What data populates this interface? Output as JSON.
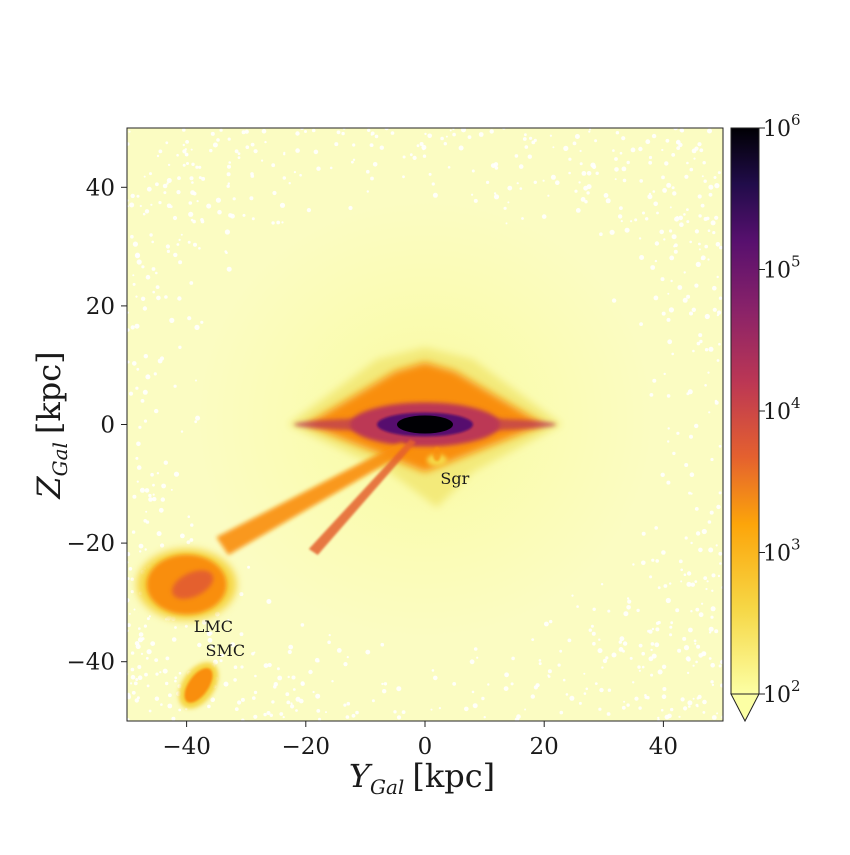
{
  "chart_data": {
    "type": "heatmap",
    "title": "",
    "xlabel": {
      "main": "Y",
      "sub": "Gal",
      "unit": "[kpc]"
    },
    "ylabel": {
      "main": "Z",
      "sub": "Gal",
      "unit": "[kpc]"
    },
    "xlim": [
      -50,
      50
    ],
    "ylim": [
      -50,
      50
    ],
    "xticks": [
      -40,
      -20,
      0,
      20,
      40
    ],
    "yticks": [
      -40,
      -20,
      0,
      20,
      40
    ],
    "xtick_labels": [
      "−40",
      "−20",
      "0",
      "20",
      "40"
    ],
    "ytick_labels": [
      "−40",
      "−20",
      "0",
      "20",
      "40"
    ],
    "grid": false,
    "colormap": "inferno_r",
    "colorscale": "log",
    "colorbar": {
      "range": [
        100,
        1000000
      ],
      "ticks": [
        100,
        1000,
        10000,
        100000,
        1000000
      ],
      "tick_labels": [
        {
          "base": "10",
          "exp": "2"
        },
        {
          "base": "10",
          "exp": "3"
        },
        {
          "base": "10",
          "exp": "4"
        },
        {
          "base": "10",
          "exp": "5"
        },
        {
          "base": "10",
          "exp": "6"
        }
      ],
      "extend": "min"
    },
    "features": [
      {
        "label": "",
        "kind": "galactic-disk",
        "x": 0,
        "y": 0,
        "peak": 1000000
      },
      {
        "label": "Sgr",
        "kind": "stream",
        "x": 2,
        "y": -6
      },
      {
        "label": "LMC",
        "kind": "dwarf-galaxy",
        "x": -40,
        "y": -27
      },
      {
        "label": "SMC",
        "kind": "dwarf-galaxy",
        "x": -38,
        "y": -44
      }
    ],
    "annotations": [
      {
        "text": "Sgr",
        "x": 5,
        "y": -10
      },
      {
        "text": "LMC",
        "x": -35.5,
        "y": -35
      },
      {
        "text": "SMC",
        "x": -33.5,
        "y": -39
      }
    ],
    "colors": {
      "background_low": "#fcffa4",
      "mid": "#f98e09",
      "high": "#bc3754",
      "higher": "#57106e",
      "peak": "#000004"
    }
  }
}
